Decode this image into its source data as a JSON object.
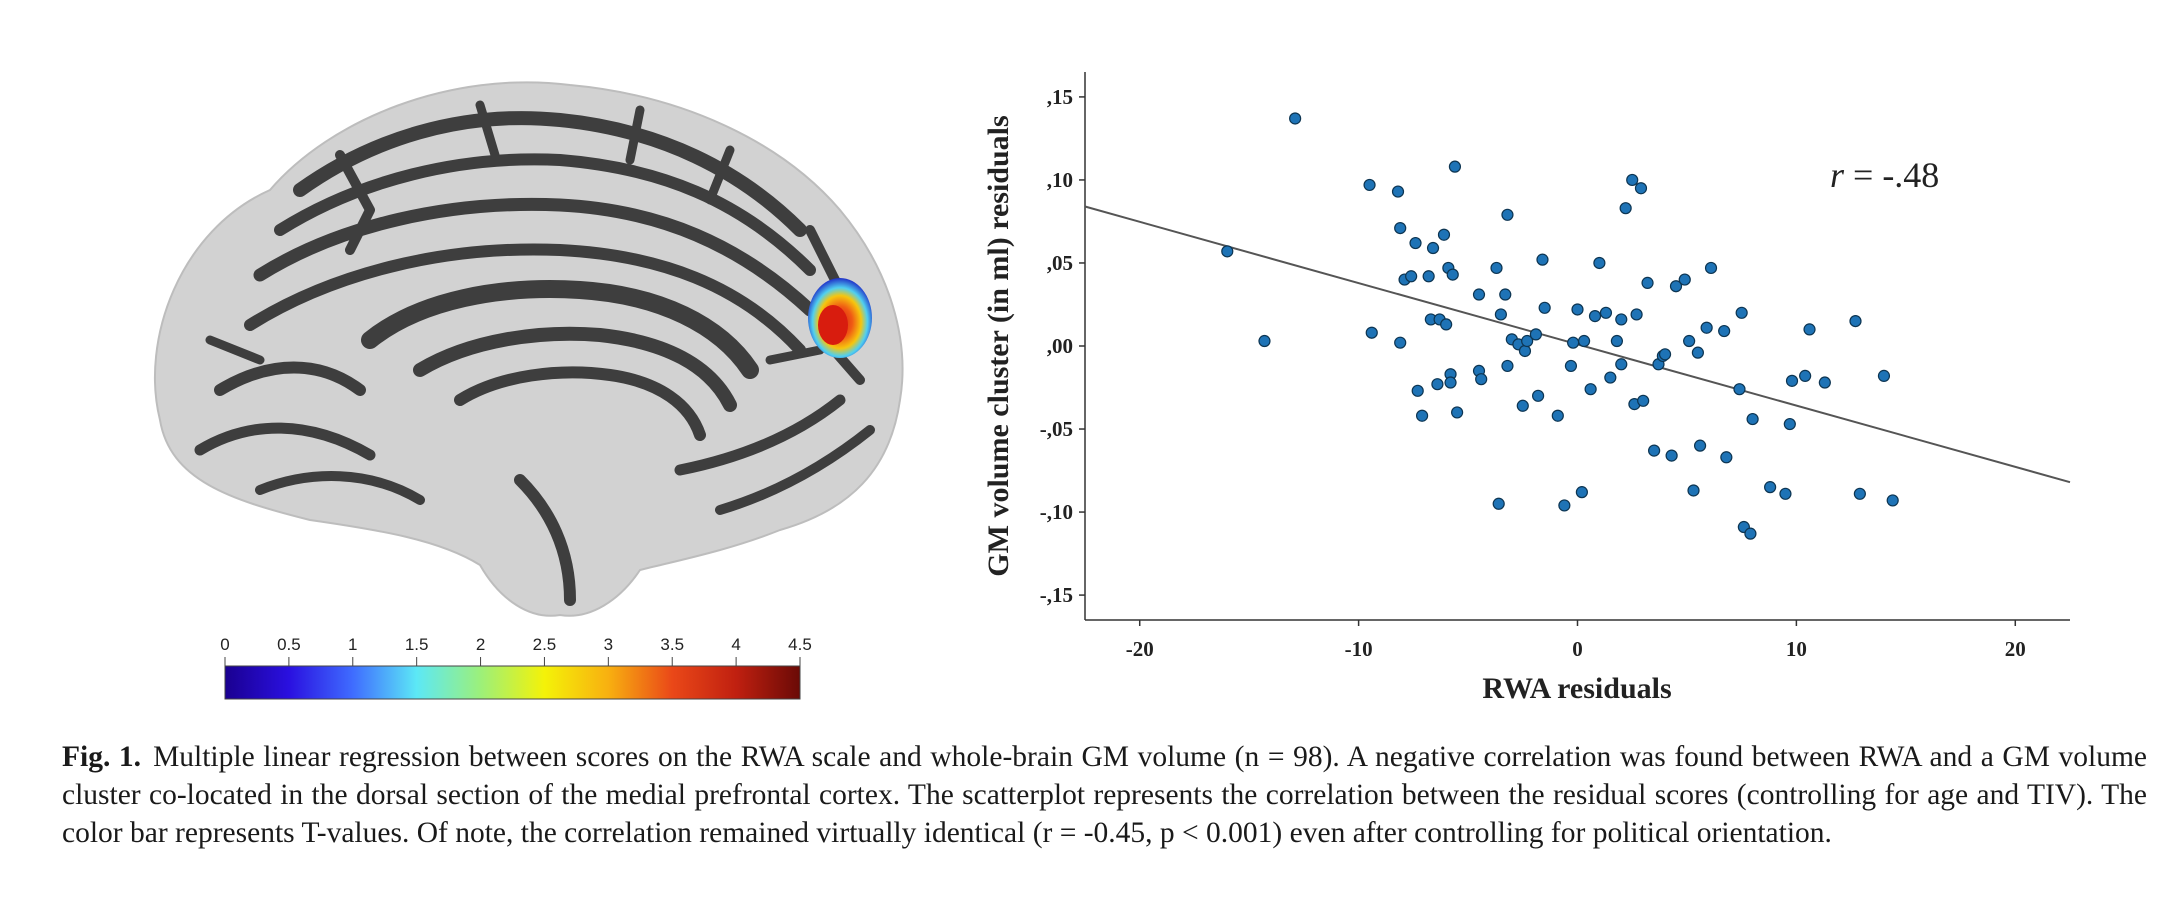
{
  "figure": {
    "colorbar": {
      "ticks": [
        "0",
        "0.5",
        "1",
        "1.5",
        "2",
        "2.5",
        "3",
        "3.5",
        "4",
        "4.5"
      ],
      "colors": [
        "#1a0090",
        "#2a10e0",
        "#3f6cff",
        "#5ce8f6",
        "#9cf07a",
        "#f4f208",
        "#f8b010",
        "#ea4818",
        "#c02010",
        "#6a0a06"
      ]
    },
    "caption": {
      "label": "Fig. 1.",
      "text": "Multiple linear regression between scores on the RWA scale and whole-brain GM volume (n = 98). A negative correlation was found between RWA and a GM volume cluster co-located in the dorsal section of the medial prefrontal cortex. The scatterplot represents the correlation between the residual scores (controlling for age and TIV). The color bar represents T-values. Of note, the correlation remained virtually identical (r = -0.45, p < 0.001) even after controlling for political orientation."
    }
  },
  "chart_data": {
    "type": "scatter",
    "xlabel": "RWA residuals",
    "ylabel": "GM volume cluster (in ml) residuals",
    "annotation": "r = -.48",
    "xlim": [
      -22.5,
      22.5
    ],
    "ylim": [
      -0.165,
      0.165
    ],
    "x_ticks": [
      -20,
      -10,
      0,
      10,
      20
    ],
    "x_tick_labels": [
      "-20",
      "-10",
      "0",
      "10",
      "20"
    ],
    "y_ticks": [
      0.15,
      0.1,
      0.05,
      0.0,
      -0.05,
      -0.1,
      -0.15
    ],
    "y_tick_labels": [
      ",15",
      ",10",
      ",05",
      ",00",
      "-,05",
      "-,10",
      "-,15"
    ],
    "regression_line": {
      "x": [
        -22.5,
        22.5
      ],
      "y": [
        0.084,
        -0.082
      ]
    },
    "marker_color": "#1e73b6",
    "points": [
      [
        -16.0,
        0.057
      ],
      [
        -14.3,
        0.003
      ],
      [
        -12.9,
        0.137
      ],
      [
        -9.5,
        0.097
      ],
      [
        -9.4,
        0.008
      ],
      [
        -8.2,
        0.093
      ],
      [
        -8.1,
        0.071
      ],
      [
        -8.1,
        0.002
      ],
      [
        -7.9,
        0.04
      ],
      [
        -7.6,
        0.042
      ],
      [
        -7.4,
        0.062
      ],
      [
        -7.3,
        -0.027
      ],
      [
        -7.1,
        -0.042
      ],
      [
        -6.8,
        0.042
      ],
      [
        -6.7,
        0.016
      ],
      [
        -6.6,
        0.059
      ],
      [
        -6.4,
        -0.023
      ],
      [
        -6.3,
        0.016
      ],
      [
        -6.1,
        0.067
      ],
      [
        -6.0,
        0.013
      ],
      [
        -5.9,
        0.047
      ],
      [
        -5.8,
        -0.017
      ],
      [
        -5.8,
        -0.022
      ],
      [
        -5.7,
        0.043
      ],
      [
        -5.6,
        0.108
      ],
      [
        -5.5,
        -0.04
      ],
      [
        -4.5,
        0.031
      ],
      [
        -4.5,
        -0.015
      ],
      [
        -4.4,
        -0.02
      ],
      [
        -3.7,
        0.047
      ],
      [
        -3.6,
        -0.095
      ],
      [
        -3.5,
        0.019
      ],
      [
        -3.3,
        0.031
      ],
      [
        -3.2,
        -0.012
      ],
      [
        -3.2,
        0.079
      ],
      [
        -3.0,
        0.004
      ],
      [
        -2.7,
        0.001
      ],
      [
        -2.5,
        -0.036
      ],
      [
        -2.4,
        -0.003
      ],
      [
        -2.3,
        0.003
      ],
      [
        -1.9,
        0.007
      ],
      [
        -1.8,
        -0.03
      ],
      [
        -1.6,
        0.052
      ],
      [
        -1.5,
        0.023
      ],
      [
        -0.9,
        -0.042
      ],
      [
        -0.6,
        -0.096
      ],
      [
        -0.3,
        -0.012
      ],
      [
        -0.2,
        0.002
      ],
      [
        0.0,
        0.022
      ],
      [
        0.2,
        -0.088
      ],
      [
        0.3,
        0.003
      ],
      [
        0.6,
        -0.026
      ],
      [
        0.8,
        0.018
      ],
      [
        1.0,
        0.05
      ],
      [
        1.3,
        0.02
      ],
      [
        1.5,
        -0.019
      ],
      [
        1.8,
        0.003
      ],
      [
        2.0,
        0.016
      ],
      [
        2.0,
        -0.011
      ],
      [
        2.2,
        0.083
      ],
      [
        2.5,
        0.1
      ],
      [
        2.6,
        -0.035
      ],
      [
        2.7,
        0.019
      ],
      [
        2.9,
        0.095
      ],
      [
        3.0,
        -0.033
      ],
      [
        3.2,
        0.038
      ],
      [
        3.5,
        -0.063
      ],
      [
        3.7,
        -0.011
      ],
      [
        3.9,
        -0.006
      ],
      [
        4.0,
        -0.005
      ],
      [
        4.3,
        -0.066
      ],
      [
        4.5,
        0.036
      ],
      [
        4.9,
        0.04
      ],
      [
        5.1,
        0.003
      ],
      [
        5.3,
        -0.087
      ],
      [
        5.5,
        -0.004
      ],
      [
        5.6,
        -0.06
      ],
      [
        5.9,
        0.011
      ],
      [
        6.1,
        0.047
      ],
      [
        6.7,
        0.009
      ],
      [
        6.8,
        -0.067
      ],
      [
        7.4,
        -0.026
      ],
      [
        7.5,
        0.02
      ],
      [
        7.6,
        -0.109
      ],
      [
        7.9,
        -0.113
      ],
      [
        8.0,
        -0.044
      ],
      [
        8.8,
        -0.085
      ],
      [
        9.5,
        -0.089
      ],
      [
        9.7,
        -0.047
      ],
      [
        9.8,
        -0.021
      ],
      [
        10.4,
        -0.018
      ],
      [
        10.6,
        0.01
      ],
      [
        11.3,
        -0.022
      ],
      [
        12.7,
        0.015
      ],
      [
        12.9,
        -0.089
      ],
      [
        14.0,
        -0.018
      ],
      [
        14.4,
        -0.093
      ]
    ]
  }
}
